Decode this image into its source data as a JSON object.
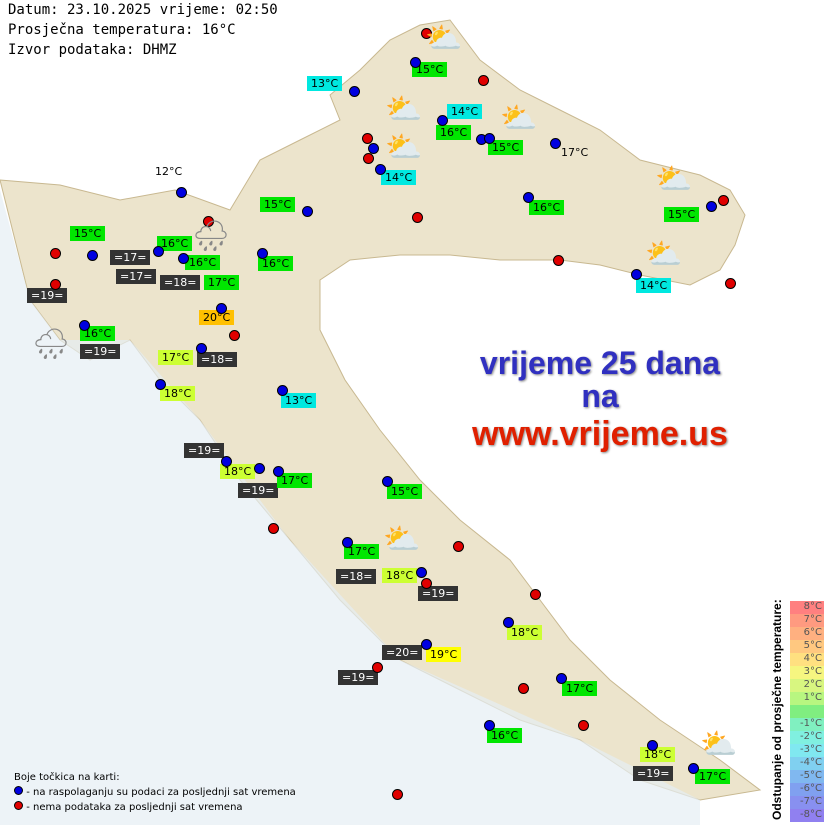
{
  "header": {
    "date_line": "Datum: 23.10.2025 vrijeme: 02:50",
    "avg_temp": "Prosječna temperatura: 16°C",
    "source": "Izvor podataka: DHMZ"
  },
  "promo": {
    "line1": "vrijeme 25 dana",
    "line2": "na",
    "line3": "www.vrijeme.us"
  },
  "legend": {
    "title": "Boje točkica na karti:",
    "blue": "- na raspolaganju su podaci za posljednji sat vremena",
    "red": "- nema podataka za posljednji sat vremena"
  },
  "scale": {
    "title": "Odstupanje od prosječne temperature:",
    "steps": [
      "8°C",
      "7°C",
      "6°C",
      "5°C",
      "4°C",
      "3°C",
      "2°C",
      "1°C",
      "",
      "-1°C",
      "-2°C",
      "-3°C",
      "-4°C",
      "-5°C",
      "-6°C",
      "-7°C",
      "-8°C"
    ],
    "colors": [
      "#ff8080",
      "#ff9a80",
      "#ffb080",
      "#ffc880",
      "#ffe080",
      "#f6f680",
      "#d8f680",
      "#b8f680",
      "#80ee80",
      "#80f0c0",
      "#80f0e0",
      "#80e8f0",
      "#80d0f0",
      "#80b8f0",
      "#80a0f0",
      "#8890f0",
      "#9080f0"
    ]
  },
  "colors": {
    "deviation_0": "#00e600",
    "deviation_minus": "#00e8e0",
    "deviation_plus1": "#ccff33",
    "deviation_plus3": "#ffff00",
    "deviation_plus4": "#ffc000",
    "sea_temp": "#333333",
    "dot_available": "#0000e0",
    "dot_missing": "#e00000"
  },
  "labels": [
    "15°C",
    "13°C",
    "14°C",
    "16°C",
    "15°C",
    "17°C",
    "14°C",
    "12°C",
    "15°C",
    "16°C",
    "15°C",
    "15°C",
    "16°C",
    "=17=",
    "16°C",
    "=17=",
    "=18=",
    "17°C",
    "16°C",
    "14°C",
    "=19=",
    "20°C",
    "16°C",
    "=19=",
    "17°C",
    "=18=",
    "18°C",
    "13°C",
    "=19=",
    "18°C",
    "=19=",
    "17°C",
    "15°C",
    "17°C",
    "=18=",
    "18°C",
    "=19=",
    "18°C",
    "=20=",
    "19°C",
    "=19=",
    "17°C",
    "16°C",
    "18°C",
    "=19=",
    "17°C"
  ],
  "icons": [
    "partly-cloudy-night",
    "partly-cloudy-night",
    "partly-cloudy-night",
    "partly-cloudy-night",
    "partly-cloudy-night",
    "partly-cloudy-night",
    "rain-cloud",
    "rain-cloud",
    "partly-cloudy-night",
    "partly-cloudy-night"
  ]
}
